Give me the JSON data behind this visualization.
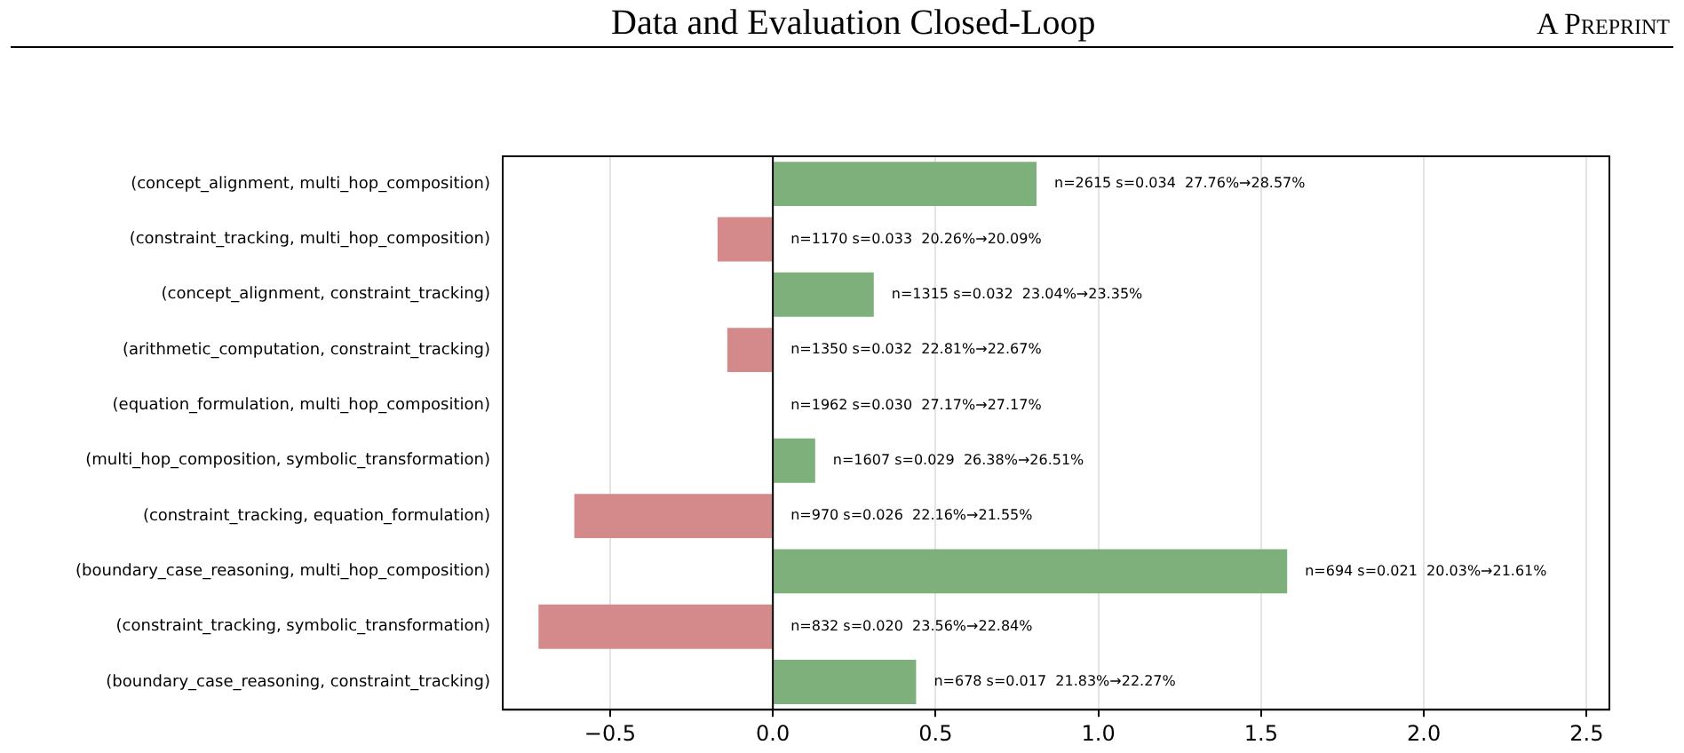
{
  "chart_data": {
    "type": "bar",
    "orientation": "horizontal",
    "categories": [
      "(concept_alignment, multi_hop_composition)",
      "(constraint_tracking, multi_hop_composition)",
      "(concept_alignment, constraint_tracking)",
      "(arithmetic_computation, constraint_tracking)",
      "(equation_formulation, multi_hop_composition)",
      "(multi_hop_composition, symbolic_transformation)",
      "(constraint_tracking, equation_formulation)",
      "(boundary_case_reasoning, multi_hop_composition)",
      "(constraint_tracking, symbolic_transformation)",
      "(boundary_case_reasoning, constraint_tracking)"
    ],
    "values": [
      0.81,
      -0.17,
      0.31,
      -0.14,
      0,
      0.13,
      -0.61,
      1.58,
      -0.72,
      0.44
    ],
    "colors": [
      "#7db07a",
      "#d48a8a",
      "#7db07a",
      "#d48a8a",
      "#7db07a",
      "#7db07a",
      "#d48a8a",
      "#7db07a",
      "#d48a8a",
      "#7db07a"
    ],
    "xlim": [
      -0.83,
      2.57
    ],
    "xticks": [
      {
        "value": -0.5,
        "label": "−0.5"
      },
      {
        "value": 0,
        "label": "0.0"
      },
      {
        "value": 0.5,
        "label": "0.5"
      },
      {
        "value": 1,
        "label": "1.0"
      },
      {
        "value": 1.5,
        "label": "1.5"
      },
      {
        "value": 2,
        "label": "2.0"
      },
      {
        "value": 2.5,
        "label": "2.5"
      }
    ],
    "ref_lines": [
      {
        "axis": "x",
        "value": 0,
        "color": "#000000"
      }
    ],
    "grid": "x",
    "annotations": [
      "Data and Evaluation Closed-Loop",
      "A Preprint",
      {
        "text": "n=2615 s=0.034  27.76%→28.57%",
        "x": 0.81,
        "y": "(concept_alignment, multi_hop_composition)"
      },
      {
        "text": "n=1170 s=0.033  20.26%→20.09%",
        "x": 0,
        "y": "(constraint_tracking, multi_hop_composition)"
      },
      {
        "text": "n=1315 s=0.032  23.04%→23.35%",
        "x": 0.31,
        "y": "(concept_alignment, constraint_tracking)"
      },
      {
        "text": "n=1350 s=0.032  22.81%→22.67%",
        "x": 0,
        "y": "(arithmetic_computation, constraint_tracking)"
      },
      {
        "text": "n=1962 s=0.030  27.17%→27.17%",
        "x": 0,
        "y": "(equation_formulation, multi_hop_composition)"
      },
      {
        "text": "n=1607 s=0.029  26.38%→26.51%",
        "x": 0.13,
        "y": "(multi_hop_composition, symbolic_transformation)"
      },
      {
        "text": "n=970 s=0.026  22.16%→21.55%",
        "x": 0,
        "y": "(constraint_tracking, equation_formulation)"
      },
      {
        "text": "n=694 s=0.021  20.03%→21.61%",
        "x": 1.58,
        "y": "(boundary_case_reasoning, multi_hop_composition)"
      },
      {
        "text": "n=832 s=0.020  23.56%→22.84%",
        "x": 0,
        "y": "(constraint_tracking, symbolic_transformation)"
      },
      {
        "text": "n=678 s=0.017  21.83%→22.27%",
        "x": 0.44,
        "y": "(boundary_case_reasoning, constraint_tracking)"
      }
    ]
  }
}
